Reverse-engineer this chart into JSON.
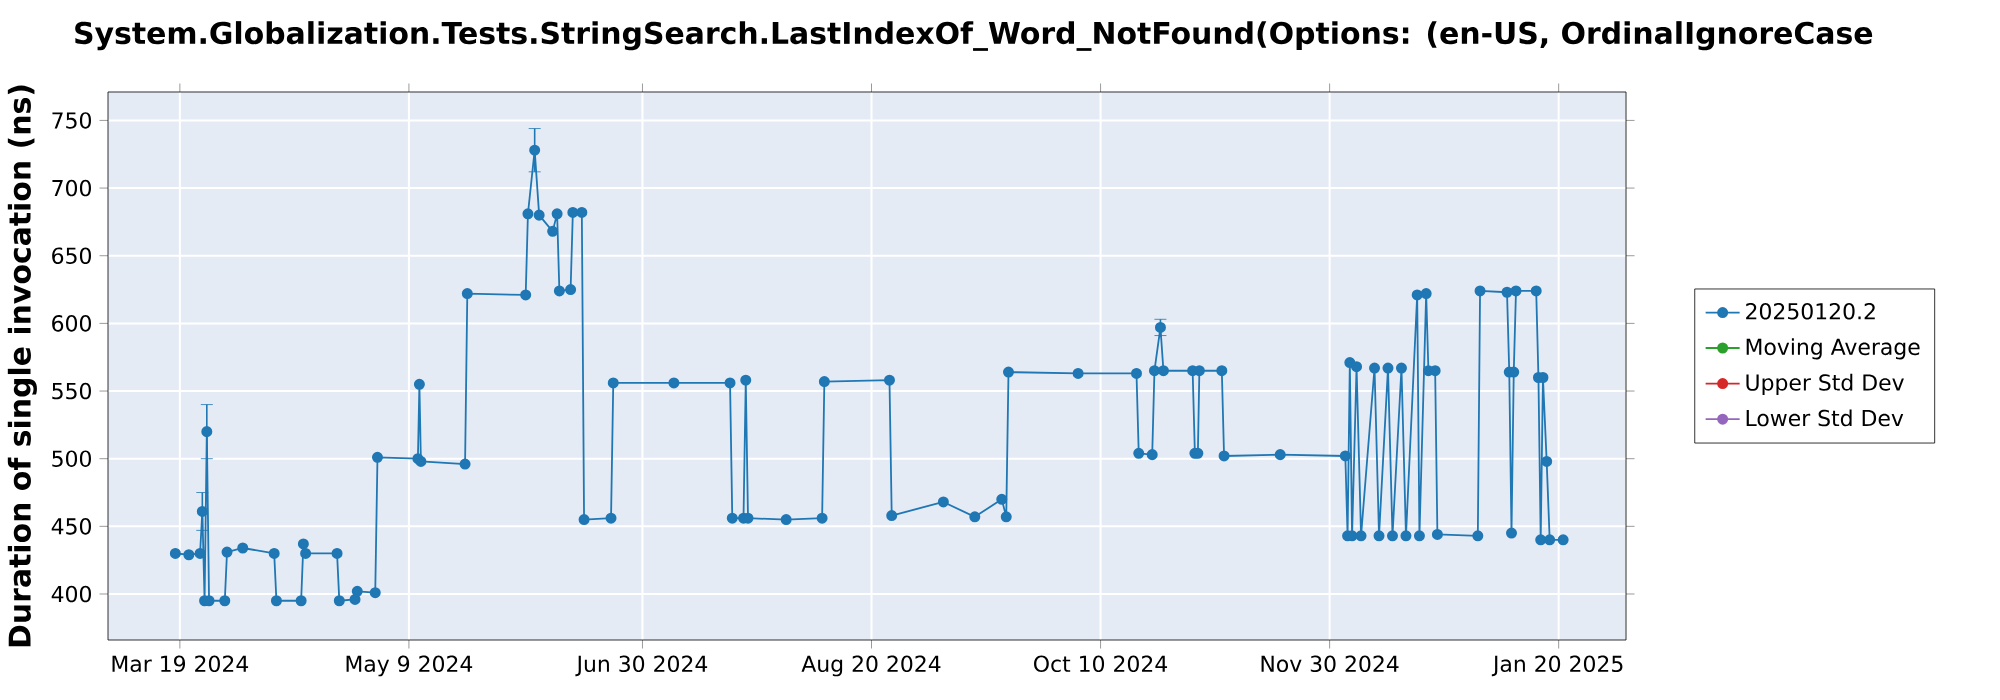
{
  "chart_data": {
    "type": "line",
    "title": "System.Globalization.Tests.StringSearch.LastIndexOf_Word_NotFound(Options: (en-US, OrdinalIgnoreCase",
    "ylabel": "Duration of single invocation (ns)",
    "xlim": [
      "2024-03-03",
      "2025-02-04"
    ],
    "xticks": [
      {
        "value": "2024-03-19",
        "label": "Mar 19 2024"
      },
      {
        "value": "2024-05-09",
        "label": "May 9 2024"
      },
      {
        "value": "2024-06-30",
        "label": "Jun 30 2024"
      },
      {
        "value": "2024-08-20",
        "label": "Aug 20 2024"
      },
      {
        "value": "2024-10-10",
        "label": "Oct 10 2024"
      },
      {
        "value": "2024-11-30",
        "label": "Nov 30 2024"
      },
      {
        "value": "2025-01-20",
        "label": "Jan 20 2025"
      }
    ],
    "ylim": [
      366,
      771
    ],
    "yticks": [
      400,
      450,
      500,
      550,
      600,
      650,
      700,
      750
    ],
    "grid": true,
    "legend": "right",
    "marker": "circle",
    "line_style": "solid",
    "series": [
      {
        "name": "20250120.2",
        "color": "#1f77b4",
        "x": [
          "2024-03-18",
          "2024-03-21",
          "2024-03-23T12:00",
          "2024-03-24",
          "2024-03-24T12:00",
          "2024-03-25",
          "2024-03-25T12:00",
          "2024-03-29",
          "2024-03-29T12:00",
          "2024-04-02",
          "2024-04-09",
          "2024-04-09T12:00",
          "2024-04-15",
          "2024-04-15T12:00",
          "2024-04-16",
          "2024-04-23",
          "2024-04-23T12:00",
          "2024-04-27",
          "2024-04-27T12:00",
          "2024-05-01T12:00",
          "2024-05-02",
          "2024-05-11",
          "2024-05-11T08:00",
          "2024-05-11T16:00",
          "2024-05-21T12:00",
          "2024-05-22",
          "2024-06-04",
          "2024-06-04T12:00",
          "2024-06-06",
          "2024-06-07",
          "2024-06-10",
          "2024-06-11",
          "2024-06-11T12:00",
          "2024-06-14",
          "2024-06-14T12:00",
          "2024-06-16T12:00",
          "2024-06-17",
          "2024-06-23",
          "2024-06-23T12:00",
          "2024-07-07",
          "2024-07-19T12:00",
          "2024-07-20",
          "2024-07-22T12:00",
          "2024-07-23",
          "2024-07-23T12:00",
          "2024-08-01",
          "2024-08-09",
          "2024-08-09T12:00",
          "2024-08-24",
          "2024-08-24T12:00",
          "2024-09-05",
          "2024-09-12",
          "2024-09-18",
          "2024-09-19",
          "2024-09-19T12:00",
          "2024-10-05",
          "2024-10-18",
          "2024-10-18T12:00",
          "2024-10-21T12:00",
          "2024-10-22",
          "2024-10-23T08:00",
          "2024-10-24",
          "2024-10-30T12:00",
          "2024-10-31",
          "2024-10-31T16:00",
          "2024-11-01",
          "2024-11-06",
          "2024-11-06T12:00",
          "2024-11-19",
          "2024-12-03T12:00",
          "2024-12-04",
          "2024-12-04T12:00",
          "2024-12-05",
          "2024-12-06",
          "2024-12-07",
          "2024-12-10",
          "2024-12-11",
          "2024-12-13",
          "2024-12-14",
          "2024-12-16",
          "2024-12-17",
          "2024-12-19T12:00",
          "2024-12-20",
          "2024-12-21T12:00",
          "2024-12-22",
          "2024-12-23T12:00",
          "2024-12-24",
          "2025-01-02",
          "2025-01-02T12:00",
          "2025-01-08T12:00",
          "2025-01-09",
          "2025-01-09T12:00",
          "2025-01-10",
          "2025-01-10T12:00",
          "2025-01-15",
          "2025-01-15T12:00",
          "2025-01-16",
          "2025-01-16T12:00",
          "2025-01-17T08:00",
          "2025-01-18",
          "2025-01-21"
        ],
        "values": [
          430,
          429,
          430,
          461,
          395,
          520,
          395,
          395,
          431,
          434,
          430,
          395,
          395,
          437,
          430,
          430,
          395,
          396,
          402,
          401,
          501,
          500,
          555,
          498,
          496,
          622,
          621,
          681,
          728,
          680,
          668,
          681,
          624,
          625,
          682,
          682,
          455,
          456,
          556,
          556,
          556,
          456,
          456,
          558,
          456,
          455,
          456,
          557,
          558,
          458,
          468,
          457,
          470,
          457,
          564,
          563,
          563,
          504,
          503,
          565,
          597,
          565,
          565,
          504,
          504,
          565,
          565,
          502,
          503,
          502,
          443,
          571,
          443,
          568,
          443,
          567,
          443,
          567,
          443,
          567,
          443,
          621,
          443,
          622,
          565,
          565,
          444,
          443,
          624,
          623,
          564,
          445,
          564,
          624,
          624,
          560,
          440,
          560,
          498,
          440,
          440
        ],
        "errors": [
          null,
          null,
          null,
          14,
          null,
          20,
          null,
          null,
          null,
          null,
          null,
          null,
          null,
          null,
          null,
          null,
          null,
          null,
          null,
          null,
          null,
          null,
          null,
          null,
          null,
          null,
          null,
          null,
          16,
          null,
          null,
          null,
          null,
          null,
          null,
          null,
          null,
          null,
          null,
          null,
          null,
          null,
          null,
          null,
          null,
          null,
          null,
          null,
          null,
          null,
          null,
          null,
          null,
          null,
          null,
          null,
          null,
          null,
          null,
          null,
          6,
          null,
          null,
          null,
          null,
          null,
          null,
          null,
          null,
          null,
          null,
          null,
          null,
          null,
          null,
          null,
          null,
          null,
          null,
          null,
          null,
          null,
          null,
          null,
          null,
          null,
          null,
          null,
          null,
          null,
          null,
          null,
          null,
          null,
          null,
          null,
          null,
          null,
          null,
          null,
          null
        ]
      },
      {
        "name": "Moving Average",
        "color": "#2ca02c"
      },
      {
        "name": "Upper Std Dev",
        "color": "#d62728"
      },
      {
        "name": "Lower Std Dev",
        "color": "#9467bd"
      }
    ]
  }
}
